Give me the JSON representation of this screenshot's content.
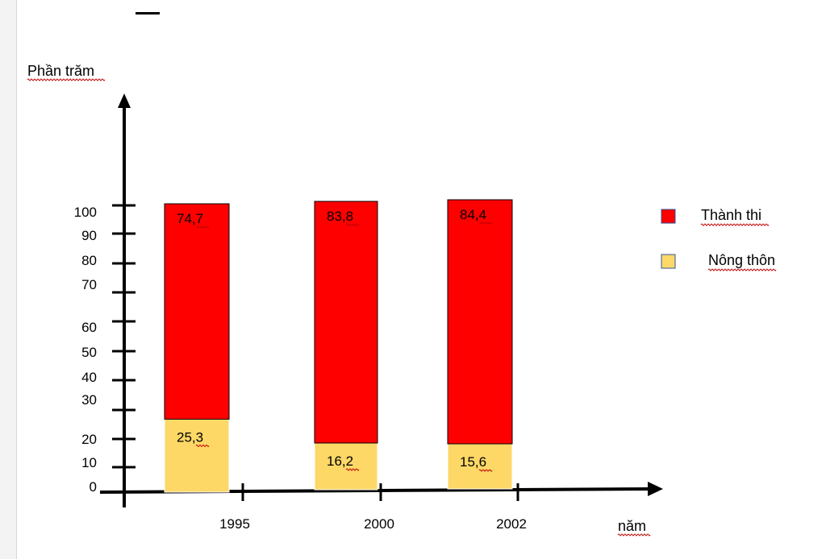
{
  "chart_data": {
    "type": "bar",
    "stacked": true,
    "ylabel": "Phần trăm",
    "xlabel": "năm",
    "categories": [
      "1995",
      "2000",
      "2002"
    ],
    "y_ticks": [
      "0",
      "10",
      "20",
      "30",
      "40",
      "50",
      "60",
      "70",
      "80",
      "90",
      "100"
    ],
    "ylim": [
      0,
      100
    ],
    "grid": false,
    "legend_position": "right",
    "series": [
      {
        "name": "Nông thôn",
        "color": "#fdd867",
        "values": [
          25.3,
          16.2,
          15.6
        ],
        "labels": [
          "25,3",
          "16,2",
          "15,6"
        ]
      },
      {
        "name": "Thành thi",
        "color": "#ff0000",
        "values": [
          74.7,
          83.8,
          84.4
        ],
        "labels": [
          "74,7",
          "83,8",
          "84,4"
        ]
      }
    ],
    "legend": [
      {
        "label": "Thành thi",
        "color": "#ff0000"
      },
      {
        "label": "Nông thôn",
        "color": "#fdd867"
      }
    ]
  }
}
